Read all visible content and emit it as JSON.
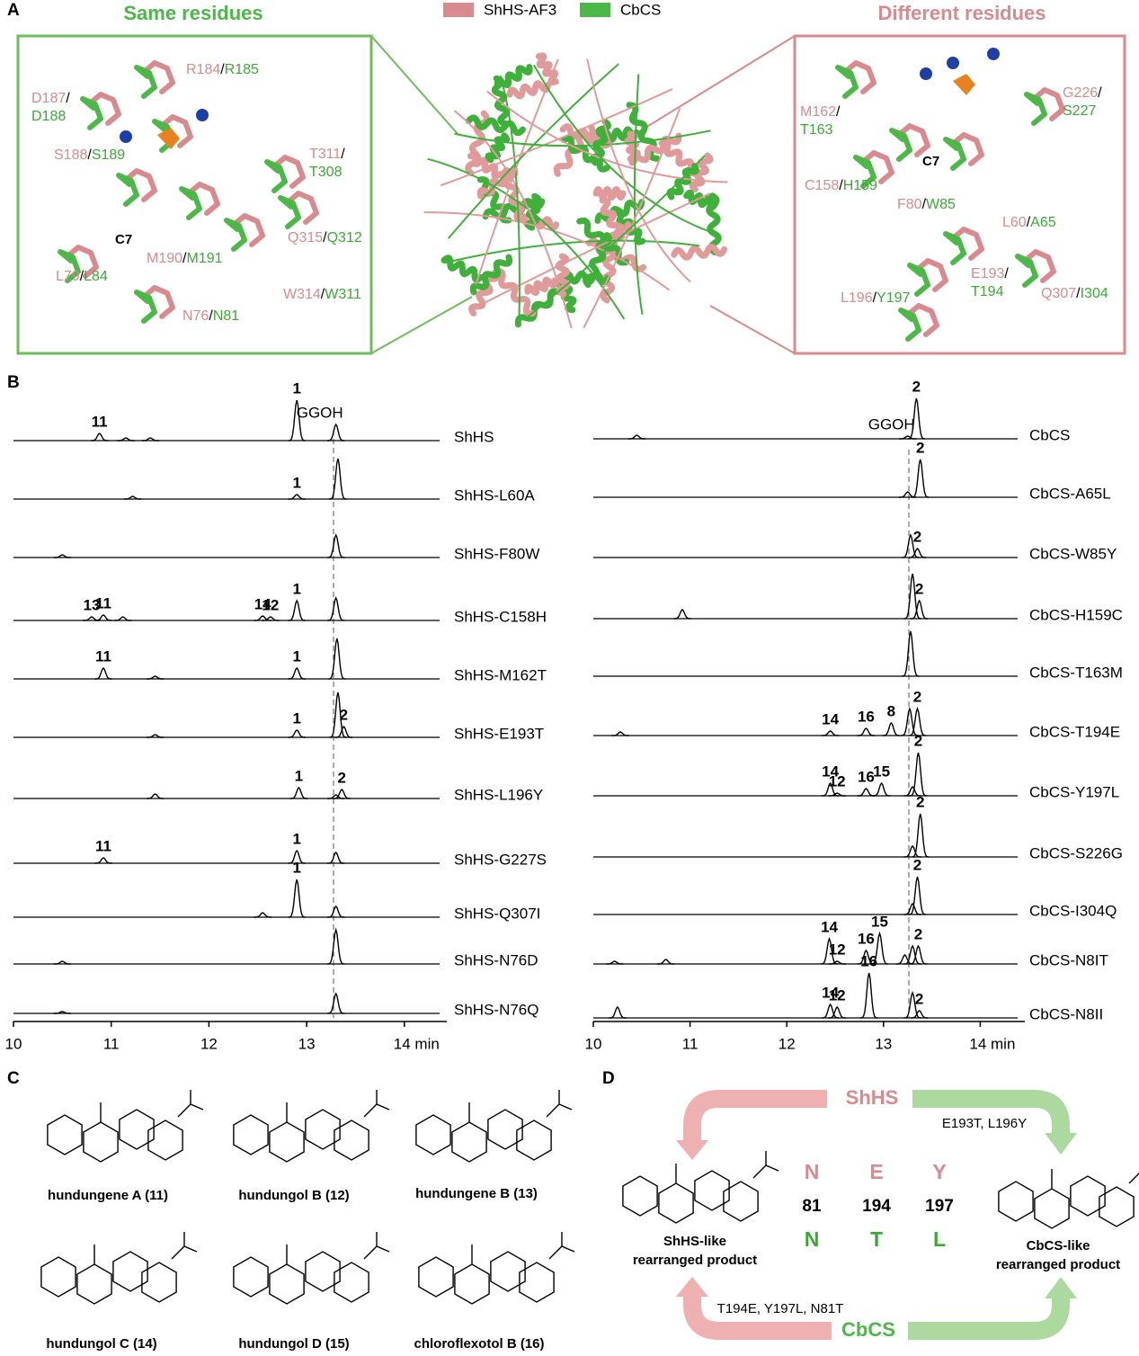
{
  "panel_labels": [
    "A",
    "B",
    "C",
    "D"
  ],
  "panel_a": {
    "title_same": "Same residues",
    "title_different": "Different residues",
    "legend": [
      {
        "name": "ShHS-AF3",
        "color": "#d98a8e"
      },
      {
        "name": "CbCS",
        "color": "#4cb847"
      }
    ],
    "separator": "/",
    "c7": "C7",
    "same": [
      [
        "R184",
        "R185"
      ],
      [
        "D187",
        "D188"
      ],
      [
        "S188",
        "S189"
      ],
      [
        "T311",
        "T308"
      ],
      [
        "Q315",
        "Q312"
      ],
      [
        "M190",
        "M191"
      ],
      [
        "L79",
        "L84"
      ],
      [
        "W314",
        "W311"
      ],
      [
        "N76",
        "N81"
      ]
    ],
    "different": [
      [
        "M162",
        "T163"
      ],
      [
        "G226",
        "S227"
      ],
      [
        "C158",
        "H159"
      ],
      [
        "F80",
        "W85"
      ],
      [
        "L60",
        "A65"
      ],
      [
        "E193",
        "T194"
      ],
      [
        "L196",
        "Y197"
      ],
      [
        "Q307",
        "I304"
      ]
    ]
  },
  "panel_b": {
    "xticks": [
      10,
      11,
      12,
      13,
      {
        "value": 14,
        "label": "14 min"
      }
    ],
    "left": {
      "traces": [
        {
          "name": "ShHS",
          "peaks": [
            {
              "t": 10.88,
              "h": 8,
              "label": "11"
            },
            {
              "t": 11.15,
              "h": 3
            },
            {
              "t": 11.4,
              "h": 3
            },
            {
              "t": 12.9,
              "h": 45,
              "label": "1"
            },
            {
              "t": 13.3,
              "h": 18,
              "label": "GGOH"
            }
          ]
        },
        {
          "name": "ShHS-L60A",
          "peaks": [
            {
              "t": 11.22,
              "h": 3
            },
            {
              "t": 12.9,
              "h": 5,
              "label": "1"
            },
            {
              "t": 13.32,
              "h": 45
            }
          ]
        },
        {
          "name": "ShHS-F80W",
          "peaks": [
            {
              "t": 10.5,
              "h": 3
            },
            {
              "t": 13.3,
              "h": 25
            }
          ]
        },
        {
          "name": "ShHS-C158H",
          "peaks": [
            {
              "t": 10.8,
              "h": 4,
              "label": "13"
            },
            {
              "t": 10.92,
              "h": 6,
              "label": "11"
            },
            {
              "t": 11.12,
              "h": 4
            },
            {
              "t": 12.55,
              "h": 5,
              "label": "14"
            },
            {
              "t": 12.63,
              "h": 4,
              "label": "12"
            },
            {
              "t": 12.9,
              "h": 22,
              "label": "1"
            },
            {
              "t": 13.3,
              "h": 25
            }
          ]
        },
        {
          "name": "ShHS-M162T",
          "peaks": [
            {
              "t": 10.92,
              "h": 12,
              "label": "11"
            },
            {
              "t": 11.45,
              "h": 3
            },
            {
              "t": 12.9,
              "h": 12,
              "label": "1"
            },
            {
              "t": 13.31,
              "h": 45
            }
          ]
        },
        {
          "name": "ShHS-E193T",
          "peaks": [
            {
              "t": 11.45,
              "h": 3
            },
            {
              "t": 12.9,
              "h": 8,
              "label": "1"
            },
            {
              "t": 13.32,
              "h": 50
            },
            {
              "t": 13.38,
              "h": 12,
              "label": "2"
            }
          ]
        },
        {
          "name": "ShHS-L196Y",
          "peaks": [
            {
              "t": 11.45,
              "h": 5
            },
            {
              "t": 12.92,
              "h": 12,
              "label": "1"
            },
            {
              "t": 13.3,
              "h": 4
            },
            {
              "t": 13.36,
              "h": 10,
              "label": "2"
            }
          ]
        },
        {
          "name": "ShHS-G227S",
          "peaks": [
            {
              "t": 10.92,
              "h": 6,
              "label": "11"
            },
            {
              "t": 12.9,
              "h": 14,
              "label": "1"
            },
            {
              "t": 13.3,
              "h": 12
            }
          ]
        },
        {
          "name": "ShHS-Q307I",
          "peaks": [
            {
              "t": 12.55,
              "h": 5
            },
            {
              "t": 12.9,
              "h": 42,
              "label": "1"
            },
            {
              "t": 13.3,
              "h": 12
            }
          ]
        },
        {
          "name": "ShHS-N76D",
          "peaks": [
            {
              "t": 10.5,
              "h": 3
            },
            {
              "t": 13.3,
              "h": 38
            }
          ]
        },
        {
          "name": "ShHS-N76Q",
          "peaks": [
            {
              "t": 10.5,
              "h": 2
            },
            {
              "t": 13.3,
              "h": 22
            }
          ]
        }
      ]
    },
    "right": {
      "traces": [
        {
          "name": "CbCS",
          "peaks": [
            {
              "t": 10.45,
              "h": 4
            },
            {
              "t": 13.25,
              "h": 3,
              "label": "GGOH"
            },
            {
              "t": 13.34,
              "h": 45,
              "label": "2"
            }
          ]
        },
        {
          "name": "CbCS-A65L",
          "peaks": [
            {
              "t": 13.25,
              "h": 6
            },
            {
              "t": 13.38,
              "h": 42,
              "label": "2"
            }
          ]
        },
        {
          "name": "CbCS-W85Y",
          "peaks": [
            {
              "t": 13.28,
              "h": 25
            },
            {
              "t": 13.35,
              "h": 10,
              "label": "2"
            }
          ]
        },
        {
          "name": "CbCS-H159C",
          "peaks": [
            {
              "t": 10.92,
              "h": 10
            },
            {
              "t": 13.3,
              "h": 50
            },
            {
              "t": 13.37,
              "h": 20,
              "label": "2"
            }
          ]
        },
        {
          "name": "CbCS-T163M",
          "peaks": [
            {
              "t": 13.28,
              "h": 50
            }
          ]
        },
        {
          "name": "CbCS-T194E",
          "peaks": [
            {
              "t": 10.28,
              "h": 4
            },
            {
              "t": 12.45,
              "h": 5,
              "label": "14"
            },
            {
              "t": 12.82,
              "h": 8,
              "label": "16"
            },
            {
              "t": 13.08,
              "h": 14,
              "label": "8"
            },
            {
              "t": 13.27,
              "h": 30
            },
            {
              "t": 13.35,
              "h": 30,
              "label": "2"
            }
          ]
        },
        {
          "name": "CbCS-Y197L",
          "peaks": [
            {
              "t": 12.45,
              "h": 14,
              "label": "14"
            },
            {
              "t": 12.52,
              "h": 3,
              "label": "12"
            },
            {
              "t": 12.82,
              "h": 8,
              "label": "16"
            },
            {
              "t": 12.98,
              "h": 14,
              "label": "15"
            },
            {
              "t": 13.3,
              "h": 10
            },
            {
              "t": 13.36,
              "h": 48,
              "label": "2"
            }
          ]
        },
        {
          "name": "CbCS-S226G",
          "peaks": [
            {
              "t": 13.3,
              "h": 12
            },
            {
              "t": 13.38,
              "h": 48,
              "label": "2"
            }
          ]
        },
        {
          "name": "CbCS-I304Q",
          "peaks": [
            {
              "t": 13.3,
              "h": 12
            },
            {
              "t": 13.35,
              "h": 42,
              "label": "2"
            }
          ]
        },
        {
          "name": "CbCS-N8IT",
          "peaks": [
            {
              "t": 10.22,
              "h": 3
            },
            {
              "t": 10.75,
              "h": 5
            },
            {
              "t": 12.44,
              "h": 28,
              "label": "14"
            },
            {
              "t": 12.52,
              "h": 3,
              "label": "12"
            },
            {
              "t": 12.82,
              "h": 15,
              "label": "16"
            },
            {
              "t": 12.96,
              "h": 34,
              "label": "15"
            },
            {
              "t": 13.22,
              "h": 10
            },
            {
              "t": 13.3,
              "h": 20
            },
            {
              "t": 13.36,
              "h": 20,
              "label": "2"
            }
          ]
        },
        {
          "name": "CbCS-N8II",
          "peaks": [
            {
              "t": 10.25,
              "h": 12
            },
            {
              "t": 12.45,
              "h": 15,
              "label": "14"
            },
            {
              "t": 12.52,
              "h": 12,
              "label": "12"
            },
            {
              "t": 12.85,
              "h": 50,
              "label": "16"
            },
            {
              "t": 13.3,
              "h": 28
            },
            {
              "t": 13.37,
              "h": 8,
              "label": "2"
            }
          ]
        }
      ]
    }
  },
  "panel_c": {
    "compounds": [
      "hundungene A (11)",
      "hundungol B (12)",
      "hundungene B (13)",
      "hundungol C (14)",
      "hundungol D (15)",
      "chloroflexotol B (16)"
    ]
  },
  "panel_d": {
    "top_enzyme": "ShHS",
    "bottom_enzyme": "CbCS",
    "top_mutations": "E193T, L196Y",
    "bottom_mutations": "T194E, Y197L, N81T",
    "shhs_residues": [
      "N",
      "E",
      "Y"
    ],
    "positions": [
      "81",
      "194",
      "197"
    ],
    "cbcs_residues": [
      "N",
      "T",
      "L"
    ],
    "left_product": [
      "ShHS-like",
      "rearranged product"
    ],
    "right_product": [
      "CbCS-like",
      "rearranged product"
    ]
  }
}
